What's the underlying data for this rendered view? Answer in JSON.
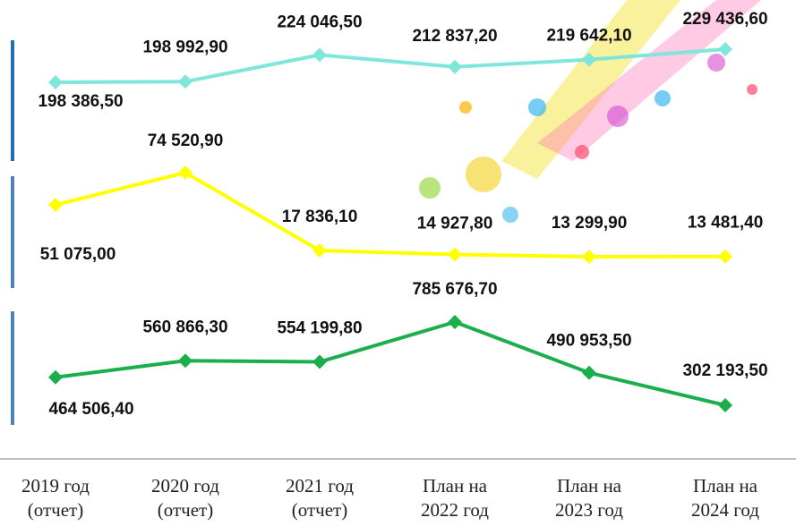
{
  "chart_data": {
    "type": "line",
    "categories": [
      "2019 год\n(отчет)",
      "2020 год\n(отчет)",
      "2021 год\n(отчет)",
      "План на\n2022 год",
      "План  на\n2023 год",
      "План на\n2024 год"
    ],
    "series": [
      {
        "color": "#7fe6dc",
        "values": [
          198386.5,
          198992.9,
          224046.5,
          212837.2,
          219642.1,
          229436.6
        ],
        "value_labels": [
          "198 386,50",
          "198 992,90",
          "224 046,50",
          "212 837,20",
          "219 642,10",
          "229 436,60"
        ]
      },
      {
        "color": "#ffff00",
        "values": [
          51075.0,
          74520.9,
          17836.1,
          14927.8,
          13299.9,
          13481.4
        ],
        "value_labels": [
          "51 075,00",
          "74 520,90",
          "17 836,10",
          "14 927,80",
          "13 299,90",
          "13 481,40"
        ]
      },
      {
        "color": "#1aae4c",
        "values": [
          464506.4,
          560866.3,
          554199.8,
          785676.7,
          490953.5,
          302193.5
        ],
        "value_labels": [
          "464 506,40",
          "560 866,30",
          "554 199,80",
          "785 676,70",
          "490 953,50",
          "302 193,50"
        ]
      }
    ]
  }
}
